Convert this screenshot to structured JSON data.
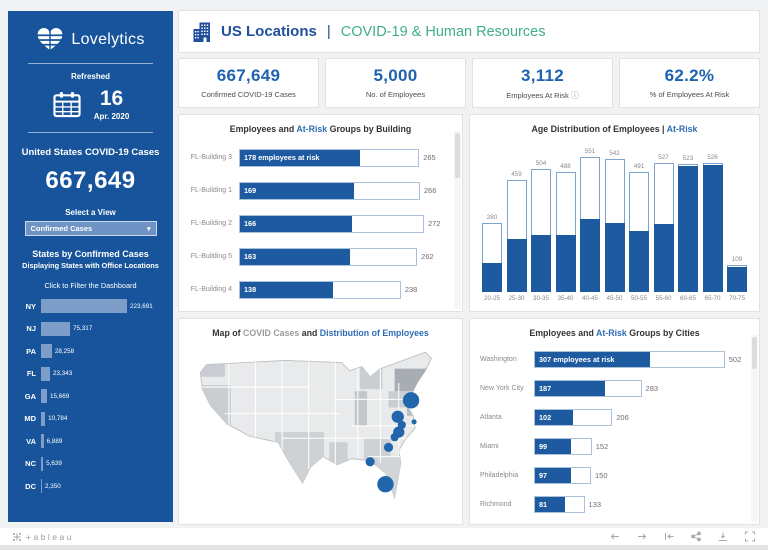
{
  "icons": {
    "caret": "▾",
    "info": "ⓘ"
  },
  "colors": {
    "sidebar_blue": "#17549B",
    "bar_blue": "#1E5AA0",
    "kpi_blue": "#1F62AE",
    "header_blue": "#1F4E9D",
    "highlight_blue": "#2E6DB4",
    "green": "#3FAE8C",
    "state_bar_light_blue": "#7E9DC8",
    "marker_blue": "#2166AC"
  },
  "brand": {
    "name": "Lovelytics",
    "refreshed_label": "Refreshed",
    "refreshed_day": "16",
    "refreshed_month": "Apr. 2020"
  },
  "sidebar": {
    "cases_title": "United States COVID-19 Cases",
    "cases_value": "667,649",
    "select_label": "Select a View",
    "select_value": "Confirmed Cases",
    "states_title": "States by Confirmed Cases",
    "states_subtitle": "Displaying States with Office Locations",
    "states_hint": "Click to Filter the Dashboard",
    "states": [
      {
        "label": "NY",
        "value": 223691,
        "display": "223,691"
      },
      {
        "label": "NJ",
        "value": 75317,
        "display": "75,317"
      },
      {
        "label": "PA",
        "value": 28258,
        "display": "28,258"
      },
      {
        "label": "FL",
        "value": 23343,
        "display": "23,343"
      },
      {
        "label": "GA",
        "value": 15669,
        "display": "15,669"
      },
      {
        "label": "MD",
        "value": 10784,
        "display": "10,784"
      },
      {
        "label": "VA",
        "value": 6889,
        "display": "6,889"
      },
      {
        "label": "NC",
        "value": 5639,
        "display": "5,639"
      },
      {
        "label": "DC",
        "value": 2350,
        "display": "2,350"
      }
    ]
  },
  "header": {
    "title": "US Locations",
    "separator": "|",
    "subtitle": "COVID-19 & Human Resources"
  },
  "kpis": [
    {
      "value": "667,649",
      "label": "Confirmed COVID-19 Cases"
    },
    {
      "value": "5,000",
      "label": "No. of Employees"
    },
    {
      "value": "3,112",
      "label": "Employees At Risk"
    },
    {
      "value": "62.2%",
      "label": "% of Employees At Risk"
    }
  ],
  "chart_data": [
    {
      "id": "buildings",
      "type": "bar",
      "orientation": "horizontal",
      "title_parts": [
        {
          "text": "Employees and ",
          "style": "dark"
        },
        {
          "text": "At-Risk",
          "style": "blue"
        },
        {
          "text": " Groups by Building",
          "style": "dark"
        }
      ],
      "categories": [
        "FL-Building 3",
        "FL-Building 1",
        "FL-Building 2",
        "FL-Building 5",
        "FL-Building 4"
      ],
      "series": [
        {
          "name": "Employees At Risk",
          "values": [
            178,
            169,
            166,
            163,
            138
          ]
        },
        {
          "name": "Total Employees",
          "values": [
            265,
            266,
            272,
            262,
            238
          ]
        }
      ],
      "bar_labels": [
        "178 employees at risk",
        "169",
        "166",
        "163",
        "138"
      ],
      "total_labels": [
        "265",
        "266",
        "272",
        "262",
        "238"
      ],
      "xlim": [
        0,
        280
      ]
    },
    {
      "id": "age",
      "type": "bar",
      "orientation": "vertical",
      "title_parts": [
        {
          "text": "Age Distribution of Employees | ",
          "style": "dark"
        },
        {
          "text": "At-Risk",
          "style": "blue"
        }
      ],
      "categories": [
        "20-25",
        "25-30",
        "30-35",
        "35-40",
        "40-45",
        "45-50",
        "50-55",
        "55-60",
        "60-65",
        "65-70",
        "70-75"
      ],
      "series": [
        {
          "name": "Total Employees",
          "values": [
            280,
            459,
            504,
            488,
            551,
            542,
            491,
            527,
            523,
            526,
            109
          ]
        },
        {
          "name": "At-Risk (estimated from fill)",
          "values": [
            124,
            219,
            238,
            236,
            303,
            287,
            255,
            280,
            523,
            526,
            109
          ]
        }
      ],
      "value_labels": [
        "280",
        "459",
        "504",
        "488",
        "551",
        "542",
        "491",
        "527",
        "523",
        "526",
        "109"
      ],
      "ylim": [
        0,
        580
      ]
    },
    {
      "id": "map",
      "type": "map",
      "title_parts": [
        {
          "text": "Map of ",
          "style": "dark"
        },
        {
          "text": "COVID Cases",
          "style": "gray"
        },
        {
          "text": " and ",
          "style": "dark"
        },
        {
          "text": "Distribution of Employees",
          "style": "blue"
        }
      ],
      "points": [
        {
          "area": "new-york",
          "x": 218,
          "y": 57,
          "r": 8
        },
        {
          "area": "pennsylvania",
          "x": 205,
          "y": 73,
          "r": 6
        },
        {
          "area": "new-jersey",
          "x": 221,
          "y": 78,
          "r": 2.5
        },
        {
          "area": "maryland",
          "x": 209,
          "y": 81,
          "r": 4
        },
        {
          "area": "washington-dc",
          "x": 206,
          "y": 88,
          "r": 5.5
        },
        {
          "area": "virginia",
          "x": 202,
          "y": 93,
          "r": 4
        },
        {
          "area": "north-carolina",
          "x": 196,
          "y": 103,
          "r": 4.5
        },
        {
          "area": "georgia",
          "x": 178,
          "y": 117,
          "r": 4.5
        },
        {
          "area": "florida",
          "x": 193,
          "y": 139,
          "r": 8
        }
      ]
    },
    {
      "id": "cities",
      "type": "bar",
      "orientation": "horizontal",
      "title_parts": [
        {
          "text": "Employees and ",
          "style": "dark"
        },
        {
          "text": "At-Risk",
          "style": "blue"
        },
        {
          "text": " Groups by Cities",
          "style": "dark"
        }
      ],
      "categories": [
        "Washington",
        "New York City",
        "Atlanta",
        "Miami",
        "Philadelphia",
        "Richmond"
      ],
      "series": [
        {
          "name": "Employees At Risk",
          "values": [
            307,
            187,
            102,
            99,
            97,
            81
          ]
        },
        {
          "name": "Total Employees",
          "values": [
            502,
            283,
            206,
            152,
            150,
            133
          ]
        }
      ],
      "bar_labels": [
        "307 employees at risk",
        "187",
        "102",
        "99",
        "97",
        "81"
      ],
      "total_labels": [
        "502",
        "283",
        "206",
        "152",
        "150",
        "133"
      ],
      "xlim": [
        0,
        520
      ]
    }
  ],
  "footer": {
    "logo_text": "+ableau"
  }
}
